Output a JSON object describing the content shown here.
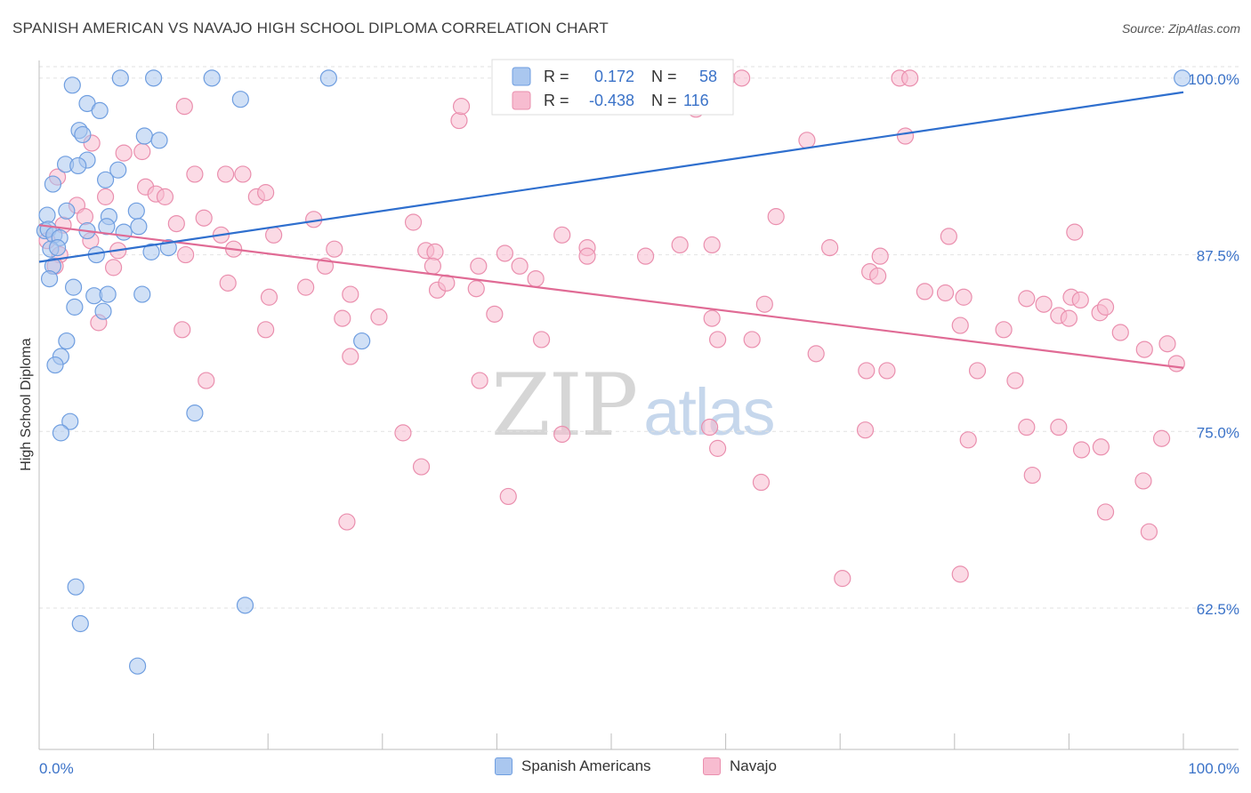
{
  "header": {
    "title": "SPANISH AMERICAN VS NAVAJO HIGH SCHOOL DIPLOMA CORRELATION CHART",
    "source": "Source: ZipAtlas.com"
  },
  "watermark": {
    "zip": "ZIP",
    "atlas": "atlas"
  },
  "legend_top": [
    {
      "r_label": "R =",
      "r_value": "0.172",
      "n_label": "N =",
      "n_value": "58"
    },
    {
      "r_label": "R =",
      "r_value": "-0.438",
      "n_label": "N =",
      "n_value": "116"
    }
  ],
  "legend_bottom": [
    {
      "label": "Spanish Americans"
    },
    {
      "label": "Navajo"
    }
  ],
  "colors": {
    "blue_fill": "#aac7ef",
    "blue_stroke": "#6f9ee0",
    "blue_line": "#2f6fce",
    "pink_fill": "#f7bcd0",
    "pink_stroke": "#ea8fae",
    "pink_line": "#e06b95",
    "tick_label": "#3a72c8",
    "grid": "#e2e2e2"
  },
  "chart_data": {
    "type": "scatter",
    "title": "SPANISH AMERICAN VS NAVAJO HIGH SCHOOL DIPLOMA CORRELATION CHART",
    "xlabel": "",
    "ylabel": "High School Diploma",
    "xlim": [
      0,
      100
    ],
    "ylim": [
      52.5,
      101.5
    ],
    "x_tick_labels": [
      "0.0%",
      "100.0%"
    ],
    "y_ticks": [
      62.5,
      75.0,
      87.5,
      100.0
    ],
    "y_tick_labels": [
      "62.5%",
      "75.0%",
      "87.5%",
      "100.0%"
    ],
    "grid": "horizontal dashed",
    "legend_placement": "top-center",
    "series": [
      {
        "name": "Spanish Americans",
        "r": 0.172,
        "n": 58,
        "trend": [
          [
            0,
            87.0
          ],
          [
            100,
            99.0
          ]
        ],
        "points": [
          [
            7.1,
            100
          ],
          [
            10.0,
            100
          ],
          [
            15.1,
            100
          ],
          [
            25.3,
            100
          ],
          [
            99.9,
            100
          ],
          [
            2.9,
            99.5
          ],
          [
            4.2,
            98.2
          ],
          [
            5.3,
            97.7
          ],
          [
            17.6,
            98.5
          ],
          [
            3.5,
            96.3
          ],
          [
            3.8,
            96.0
          ],
          [
            9.2,
            95.9
          ],
          [
            10.5,
            95.6
          ],
          [
            4.2,
            94.2
          ],
          [
            2.3,
            93.9
          ],
          [
            3.4,
            93.8
          ],
          [
            6.9,
            93.5
          ],
          [
            1.2,
            92.5
          ],
          [
            5.8,
            92.8
          ],
          [
            0.7,
            90.3
          ],
          [
            2.4,
            90.6
          ],
          [
            8.5,
            90.6
          ],
          [
            6.1,
            90.2
          ],
          [
            0.5,
            89.2
          ],
          [
            0.8,
            89.3
          ],
          [
            1.3,
            88.9
          ],
          [
            1.8,
            88.7
          ],
          [
            4.2,
            89.2
          ],
          [
            7.4,
            89.1
          ],
          [
            5.9,
            89.5
          ],
          [
            8.7,
            89.5
          ],
          [
            1.0,
            87.9
          ],
          [
            1.6,
            88.0
          ],
          [
            5.0,
            87.5
          ],
          [
            9.8,
            87.7
          ],
          [
            11.3,
            88.0
          ],
          [
            1.2,
            86.7
          ],
          [
            0.9,
            85.8
          ],
          [
            3.0,
            85.2
          ],
          [
            4.8,
            84.6
          ],
          [
            6.0,
            84.7
          ],
          [
            9.0,
            84.7
          ],
          [
            3.1,
            83.8
          ],
          [
            5.6,
            83.5
          ],
          [
            2.4,
            81.4
          ],
          [
            28.2,
            81.4
          ],
          [
            1.9,
            80.3
          ],
          [
            1.4,
            79.7
          ],
          [
            13.6,
            76.3
          ],
          [
            2.7,
            75.7
          ],
          [
            1.9,
            74.9
          ],
          [
            3.2,
            64.0
          ],
          [
            18.0,
            62.7
          ],
          [
            3.6,
            61.4
          ],
          [
            8.6,
            58.4
          ]
        ]
      },
      {
        "name": "Navajo",
        "r": -0.438,
        "n": 116,
        "trend": [
          [
            0,
            89.6
          ],
          [
            100,
            79.5
          ]
        ],
        "points": [
          [
            52.4,
            100
          ],
          [
            60.1,
            100
          ],
          [
            61.4,
            100
          ],
          [
            75.2,
            100
          ],
          [
            76.1,
            100
          ],
          [
            12.7,
            98.0
          ],
          [
            36.7,
            97.0
          ],
          [
            36.9,
            98.0
          ],
          [
            57.4,
            97.8
          ],
          [
            4.6,
            95.4
          ],
          [
            7.4,
            94.7
          ],
          [
            9.0,
            94.8
          ],
          [
            67.1,
            95.6
          ],
          [
            75.7,
            95.9
          ],
          [
            13.6,
            93.2
          ],
          [
            16.3,
            93.2
          ],
          [
            17.8,
            93.2
          ],
          [
            1.6,
            93.0
          ],
          [
            9.3,
            92.3
          ],
          [
            5.8,
            91.6
          ],
          [
            10.2,
            91.8
          ],
          [
            11.0,
            91.6
          ],
          [
            19.0,
            91.6
          ],
          [
            19.8,
            91.9
          ],
          [
            3.3,
            91.0
          ],
          [
            4.0,
            90.2
          ],
          [
            14.4,
            90.1
          ],
          [
            24.0,
            90.0
          ],
          [
            32.7,
            89.8
          ],
          [
            64.4,
            90.2
          ],
          [
            2.1,
            89.6
          ],
          [
            12.0,
            89.7
          ],
          [
            15.9,
            88.9
          ],
          [
            20.5,
            88.9
          ],
          [
            45.7,
            88.9
          ],
          [
            79.5,
            88.8
          ],
          [
            90.5,
            89.1
          ],
          [
            0.7,
            88.5
          ],
          [
            4.5,
            88.5
          ],
          [
            17.0,
            87.9
          ],
          [
            25.8,
            87.9
          ],
          [
            33.8,
            87.8
          ],
          [
            47.9,
            88.0
          ],
          [
            56.0,
            88.2
          ],
          [
            58.8,
            88.2
          ],
          [
            69.1,
            88.0
          ],
          [
            1.8,
            87.5
          ],
          [
            6.9,
            87.8
          ],
          [
            12.8,
            87.5
          ],
          [
            34.6,
            87.7
          ],
          [
            40.7,
            87.6
          ],
          [
            47.9,
            87.4
          ],
          [
            53.0,
            87.4
          ],
          [
            73.5,
            87.4
          ],
          [
            1.4,
            86.7
          ],
          [
            6.5,
            86.6
          ],
          [
            25.0,
            86.7
          ],
          [
            34.4,
            86.7
          ],
          [
            38.4,
            86.7
          ],
          [
            42.0,
            86.7
          ],
          [
            72.6,
            86.3
          ],
          [
            73.3,
            86.0
          ],
          [
            16.5,
            85.5
          ],
          [
            23.3,
            85.2
          ],
          [
            34.8,
            85.0
          ],
          [
            35.6,
            85.5
          ],
          [
            43.4,
            85.8
          ],
          [
            20.1,
            84.5
          ],
          [
            27.2,
            84.7
          ],
          [
            38.2,
            85.1
          ],
          [
            58.8,
            83.0
          ],
          [
            77.4,
            84.9
          ],
          [
            79.2,
            84.8
          ],
          [
            80.8,
            84.5
          ],
          [
            86.3,
            84.4
          ],
          [
            90.2,
            84.5
          ],
          [
            91.0,
            84.3
          ],
          [
            5.2,
            82.7
          ],
          [
            12.5,
            82.2
          ],
          [
            19.8,
            82.2
          ],
          [
            26.5,
            83.0
          ],
          [
            29.7,
            83.1
          ],
          [
            39.8,
            83.3
          ],
          [
            63.4,
            84.0
          ],
          [
            87.8,
            84.0
          ],
          [
            89.1,
            83.2
          ],
          [
            90.0,
            83.0
          ],
          [
            92.7,
            83.4
          ],
          [
            27.2,
            80.3
          ],
          [
            43.9,
            81.5
          ],
          [
            59.3,
            81.5
          ],
          [
            62.3,
            81.5
          ],
          [
            67.9,
            80.5
          ],
          [
            80.5,
            82.5
          ],
          [
            84.3,
            82.2
          ],
          [
            93.2,
            83.8
          ],
          [
            94.5,
            82.0
          ],
          [
            14.6,
            78.6
          ],
          [
            38.5,
            78.6
          ],
          [
            72.3,
            79.3
          ],
          [
            74.1,
            79.3
          ],
          [
            82.0,
            79.3
          ],
          [
            85.3,
            78.6
          ],
          [
            96.6,
            80.8
          ],
          [
            98.6,
            81.2
          ],
          [
            99.4,
            79.8
          ],
          [
            31.8,
            74.9
          ],
          [
            45.7,
            74.8
          ],
          [
            58.6,
            75.3
          ],
          [
            72.2,
            75.1
          ],
          [
            86.3,
            75.3
          ],
          [
            89.1,
            75.3
          ],
          [
            92.8,
            73.9
          ],
          [
            33.4,
            72.5
          ],
          [
            41.0,
            70.4
          ],
          [
            59.3,
            73.8
          ],
          [
            63.1,
            71.4
          ],
          [
            81.2,
            74.4
          ],
          [
            86.8,
            71.9
          ],
          [
            91.1,
            73.7
          ],
          [
            98.1,
            74.5
          ],
          [
            26.9,
            68.6
          ],
          [
            93.2,
            69.3
          ],
          [
            96.5,
            71.5
          ],
          [
            97.0,
            67.9
          ],
          [
            70.2,
            64.6
          ],
          [
            80.5,
            64.9
          ]
        ]
      }
    ]
  }
}
